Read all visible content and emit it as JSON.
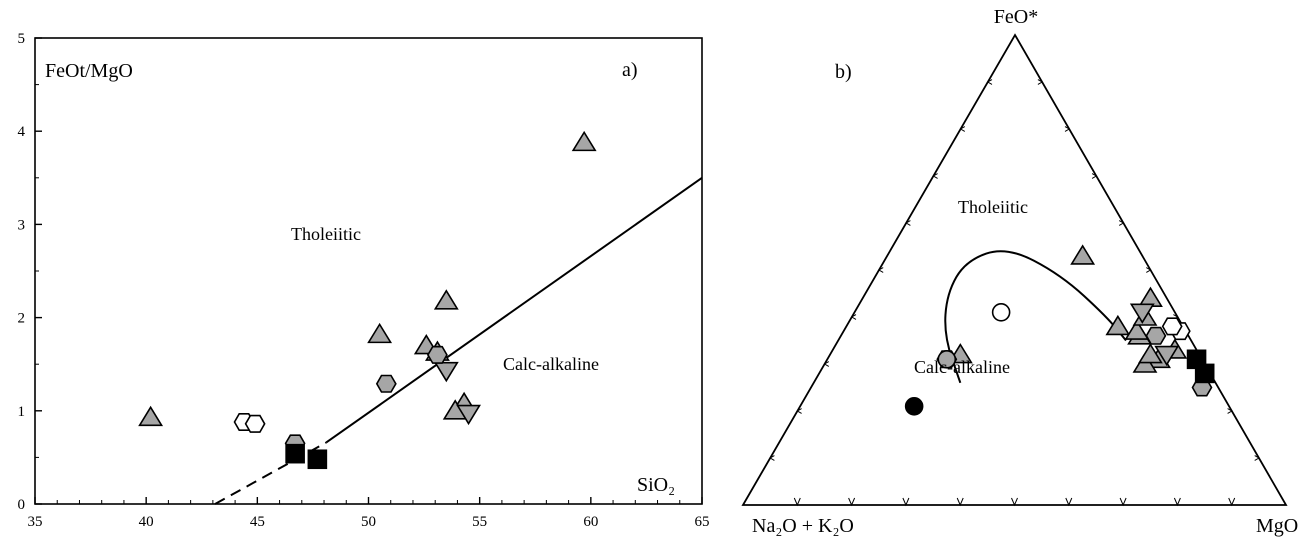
{
  "chart_data": [
    {
      "panel": "a)",
      "type": "scatter",
      "ylabel": "FeOt/MgO",
      "xlabel": "SiO₂",
      "xlim": [
        35,
        65
      ],
      "ylim": [
        0,
        5
      ],
      "x_ticks": [
        "35",
        "40",
        "45",
        "50",
        "55",
        "60",
        "65"
      ],
      "y_ticks": [
        "0",
        "1",
        "2",
        "3",
        "4",
        "5"
      ],
      "grid": false,
      "regions": [
        "Tholeiitic",
        "Calc-alkaline"
      ],
      "boundary_line": {
        "dashed": [
          [
            43.1,
            0.0
          ],
          [
            48.1,
            0.66
          ]
        ],
        "solid": [
          [
            48.1,
            0.66
          ],
          [
            65.0,
            3.5
          ]
        ]
      },
      "colors": {
        "gray": "#a6a6a6",
        "black": "#000000",
        "white": "#ffffff"
      },
      "series": [
        {
          "marker": "triangle-up",
          "fill": "gray",
          "x": [
            40.2,
            50.5,
            52.6,
            53.1,
            53.5,
            54.3,
            53.9,
            59.7
          ],
          "y": [
            0.93,
            1.82,
            1.7,
            1.63,
            2.18,
            1.08,
            1.0,
            3.88
          ]
        },
        {
          "marker": "triangle-down",
          "fill": "gray",
          "x": [
            53.5,
            54.5
          ],
          "y": [
            1.43,
            0.97
          ]
        },
        {
          "marker": "hexagon",
          "fill": "gray",
          "x": [
            46.7,
            50.8,
            53.1
          ],
          "y": [
            0.65,
            1.29,
            1.6
          ]
        },
        {
          "marker": "hexagon",
          "fill": "white",
          "x": [
            44.4,
            44.9
          ],
          "y": [
            0.88,
            0.86
          ]
        },
        {
          "marker": "square",
          "fill": "black",
          "x": [
            46.7,
            47.7
          ],
          "y": [
            0.54,
            0.48
          ]
        }
      ]
    },
    {
      "panel": "b)",
      "type": "scatter",
      "subtype": "ternary",
      "apices": {
        "top": "FeO*",
        "left": "Na₂O + K₂O",
        "right": "MgO"
      },
      "regions": [
        "Tholeiitic",
        "Calc-alkaline"
      ],
      "ticks_per_side": 9,
      "boundary_curve": [
        [
          47,
          26,
          27
        ],
        [
          45,
          36,
          19
        ],
        [
          40,
          45,
          15
        ],
        [
          33,
          52,
          15
        ],
        [
          24,
          55,
          21
        ],
        [
          17,
          49,
          34
        ],
        [
          13,
          40,
          47
        ],
        [
          12,
          35,
          53
        ]
      ],
      "series": [
        {
          "marker": "triangle-up",
          "fill": "gray",
          "points": [
            [
              11,
              53,
              36
            ],
            [
              9,
              36,
              55
            ],
            [
              12,
              38,
              50
            ],
            [
              9,
              37,
              54
            ],
            [
              8,
              31,
              61
            ],
            [
              11,
              30,
              59
            ],
            [
              9,
              32,
              59
            ],
            [
              4,
              33,
              63
            ],
            [
              6,
              40,
              54
            ],
            [
              3,
              44,
              53
            ],
            [
              44,
              32,
              24
            ]
          ]
        },
        {
          "marker": "triangle-down",
          "fill": "gray",
          "points": [
            [
              6,
              41,
              53
            ],
            [
              6,
              32,
              62
            ]
          ]
        },
        {
          "marker": "hexagon",
          "fill": "gray",
          "points": [
            [
              6,
              36,
              58
            ],
            [
              3,
              25,
              72
            ],
            [
              47,
              31,
              22
            ]
          ]
        },
        {
          "marker": "hexagon",
          "fill": "white",
          "points": [
            [
              1,
              37,
              62
            ],
            [
              2,
              38,
              60
            ]
          ]
        },
        {
          "marker": "circle",
          "fill": "white",
          "points": [
            [
              32,
              41,
              27
            ]
          ]
        },
        {
          "marker": "circle",
          "fill": "gray",
          "points": [
            [
              47,
              31,
              22
            ]
          ]
        },
        {
          "marker": "circle",
          "fill": "black",
          "points": [
            [
              58,
              21,
              21
            ]
          ]
        },
        {
          "marker": "square",
          "fill": "black",
          "points": [
            [
              1,
              31,
              68
            ],
            [
              1,
              28,
              71
            ]
          ]
        }
      ]
    }
  ]
}
